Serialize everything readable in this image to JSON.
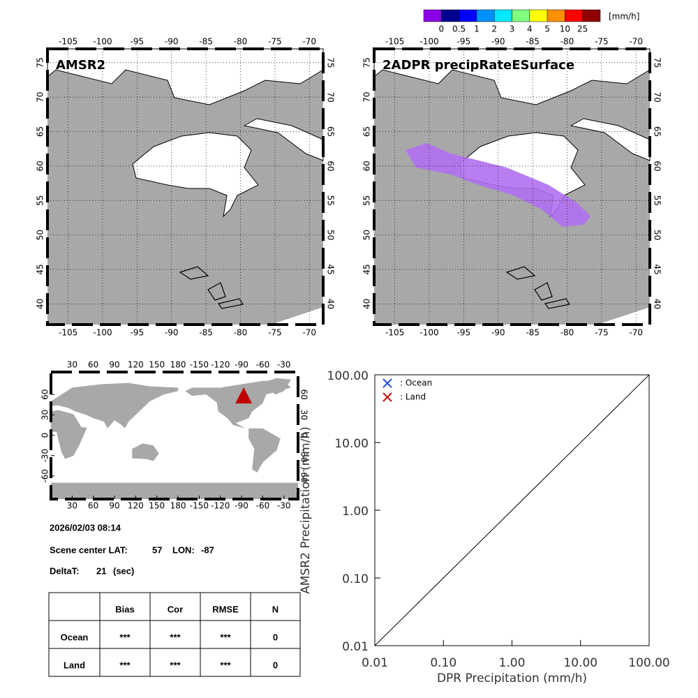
{
  "colorbar": {
    "unit": "[mm/h]",
    "labels": [
      0,
      0.5,
      1,
      2,
      3,
      4,
      5,
      10,
      25
    ],
    "colors": [
      "#8a00e6",
      "#000090",
      "#0000ff",
      "#0090ff",
      "#00e8ff",
      "#80ff80",
      "#ffff00",
      "#ff9000",
      "#ff0000",
      "#900000"
    ]
  },
  "maps": [
    {
      "title": "AMSR2",
      "xlim": [
        -108,
        -68
      ],
      "ylim": [
        37,
        77
      ],
      "xticks": [
        -105,
        -100,
        -95,
        -90,
        -85,
        -80,
        -75,
        -70
      ],
      "yticks": [
        40,
        45,
        50,
        55,
        60,
        65,
        70,
        75
      ]
    },
    {
      "title": "2ADPR precipRateESurface",
      "xlim": [
        -108,
        -68
      ],
      "ylim": [
        37,
        77
      ],
      "xticks": [
        -105,
        -100,
        -95,
        -90,
        -85,
        -80,
        -75,
        -70
      ],
      "yticks": [
        40,
        45,
        50,
        55,
        60,
        65,
        70,
        75
      ]
    }
  ],
  "globe": {
    "xlim": [
      0,
      350
    ],
    "ylim": [
      -94,
      93
    ],
    "xticks": [
      30,
      60,
      90,
      120,
      150,
      180,
      -150,
      -120,
      -90,
      -60,
      -30
    ],
    "yticks": [
      60,
      30,
      0,
      -30,
      -60
    ]
  },
  "info": {
    "datetime": "2026/02/03 08:14",
    "lat_label": "Scene center LAT:",
    "lat": 57,
    "lon_label": "LON:",
    "lon": -87,
    "deltat_label": "DeltaT:",
    "deltat": 21,
    "deltat_unit": "(sec)"
  },
  "table": {
    "header": [
      "Bias",
      "Cor",
      "RMSE",
      "N"
    ],
    "rows": [
      [
        "Ocean",
        "***",
        "***",
        "***",
        "0"
      ],
      [
        "Land",
        "***",
        "***",
        "***",
        "0"
      ]
    ]
  },
  "chart_data": {
    "type": "scatter",
    "xlabel": "DPR Precipitation (mm/h)",
    "ylabel": "AMSR2 Precipitation (mm/h)",
    "log": true,
    "xlim": [
      0.01,
      100
    ],
    "ylim": [
      0.01,
      100
    ],
    "xticks": [
      {
        "value": 0.01,
        "label": "0.01"
      },
      {
        "value": 0.1,
        "label": "0.10"
      },
      {
        "value": 1,
        "label": "1.00"
      },
      {
        "value": 10,
        "label": "10.00"
      },
      {
        "value": 100,
        "label": "100.00"
      }
    ],
    "yticks": [
      {
        "value": 0.01,
        "label": "0.01"
      },
      {
        "value": 0.1,
        "label": "0.10"
      },
      {
        "value": 1,
        "label": "1.00"
      },
      {
        "value": 10,
        "label": "10.00"
      },
      {
        "value": 100,
        "label": "100.00"
      }
    ],
    "series": [
      {
        "name": ": Ocean",
        "color": "#1e50d0",
        "values": []
      },
      {
        "name": ": Land",
        "color": "#c01010",
        "values": []
      }
    ]
  }
}
